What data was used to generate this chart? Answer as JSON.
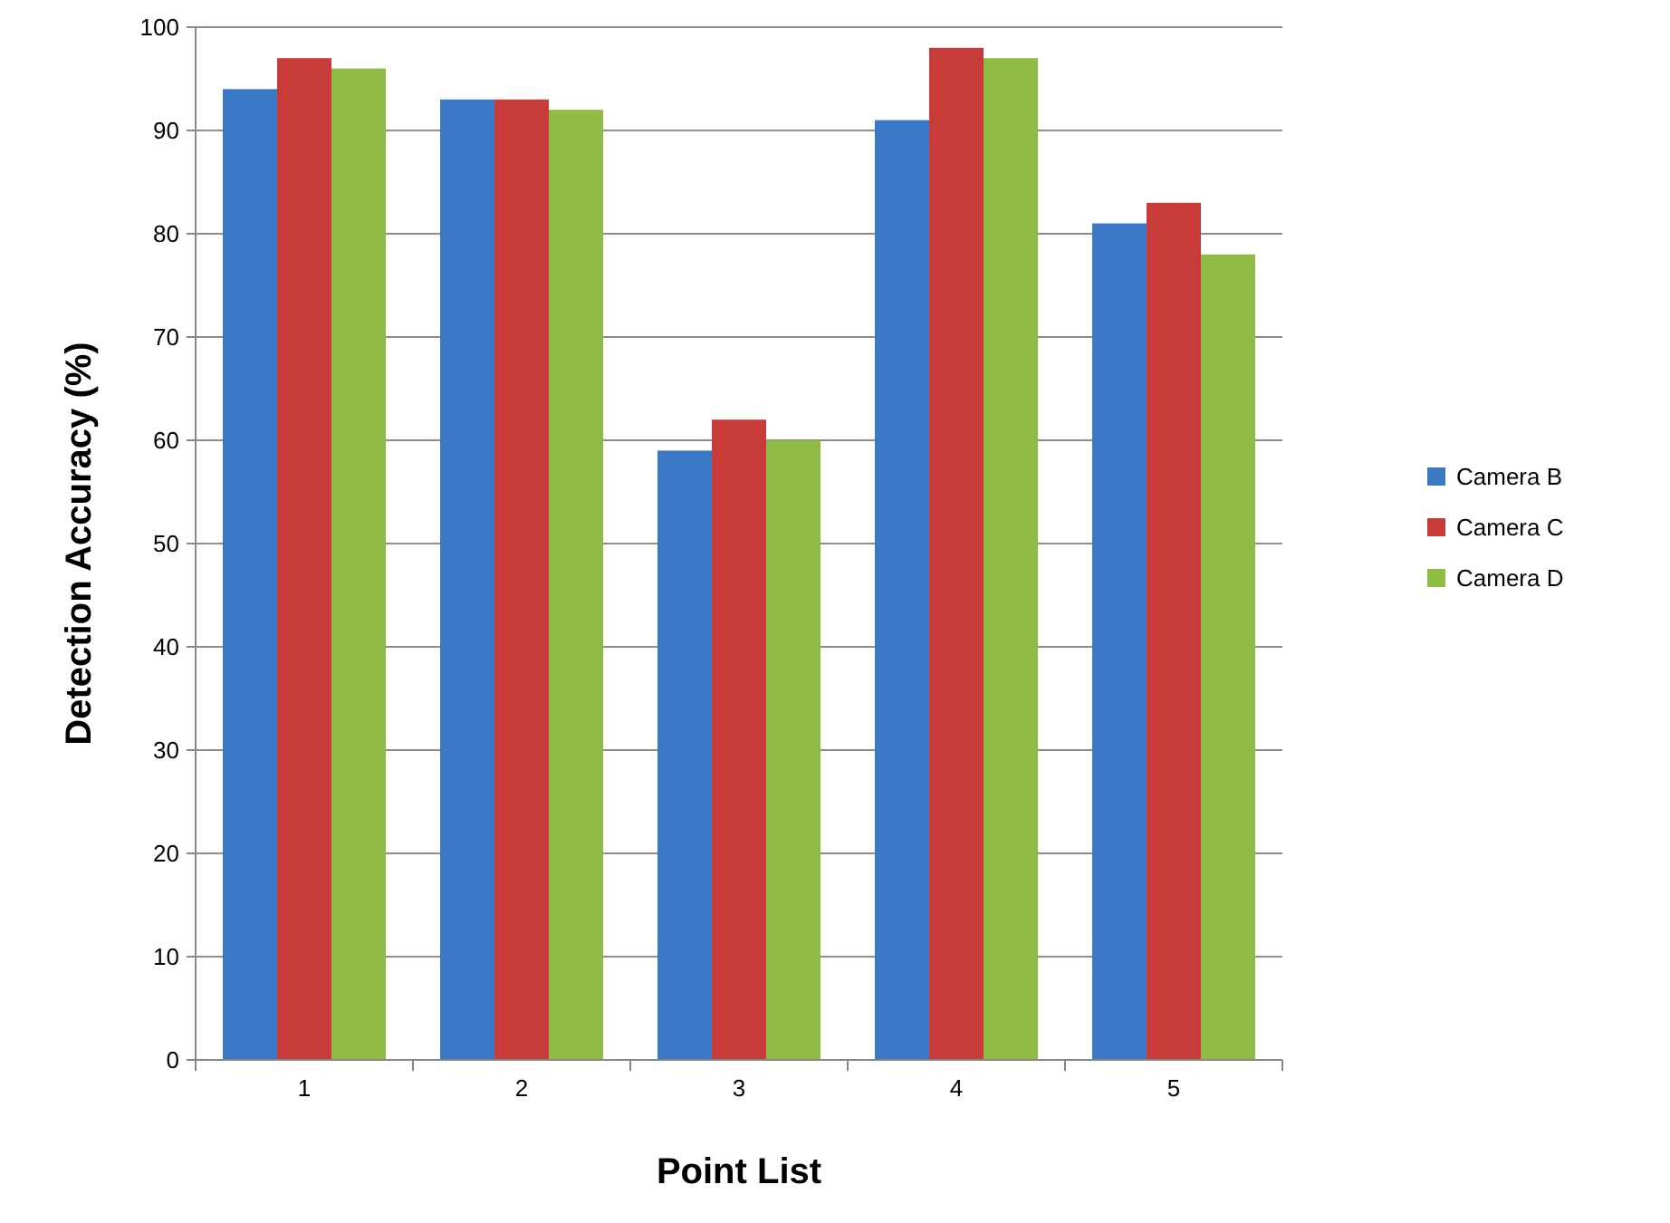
{
  "chart_data": {
    "type": "bar",
    "xlabel": "Point List",
    "ylabel": "Detection Accuracy (%)",
    "categories": [
      "1",
      "2",
      "3",
      "4",
      "5"
    ],
    "series": [
      {
        "name": "Camera B",
        "color": "#3b78c6",
        "values": [
          94,
          93,
          59,
          91,
          81
        ]
      },
      {
        "name": "Camera C",
        "color": "#c73c38",
        "values": [
          97,
          93,
          62,
          98,
          83
        ]
      },
      {
        "name": "Camera D",
        "color": "#8fbb45",
        "values": [
          96,
          92,
          60,
          97,
          78
        ]
      }
    ],
    "ylim": [
      0,
      100
    ],
    "yticks": [
      0,
      10,
      20,
      30,
      40,
      50,
      60,
      70,
      80,
      90,
      100
    ],
    "grid": "y",
    "legend": "right"
  }
}
